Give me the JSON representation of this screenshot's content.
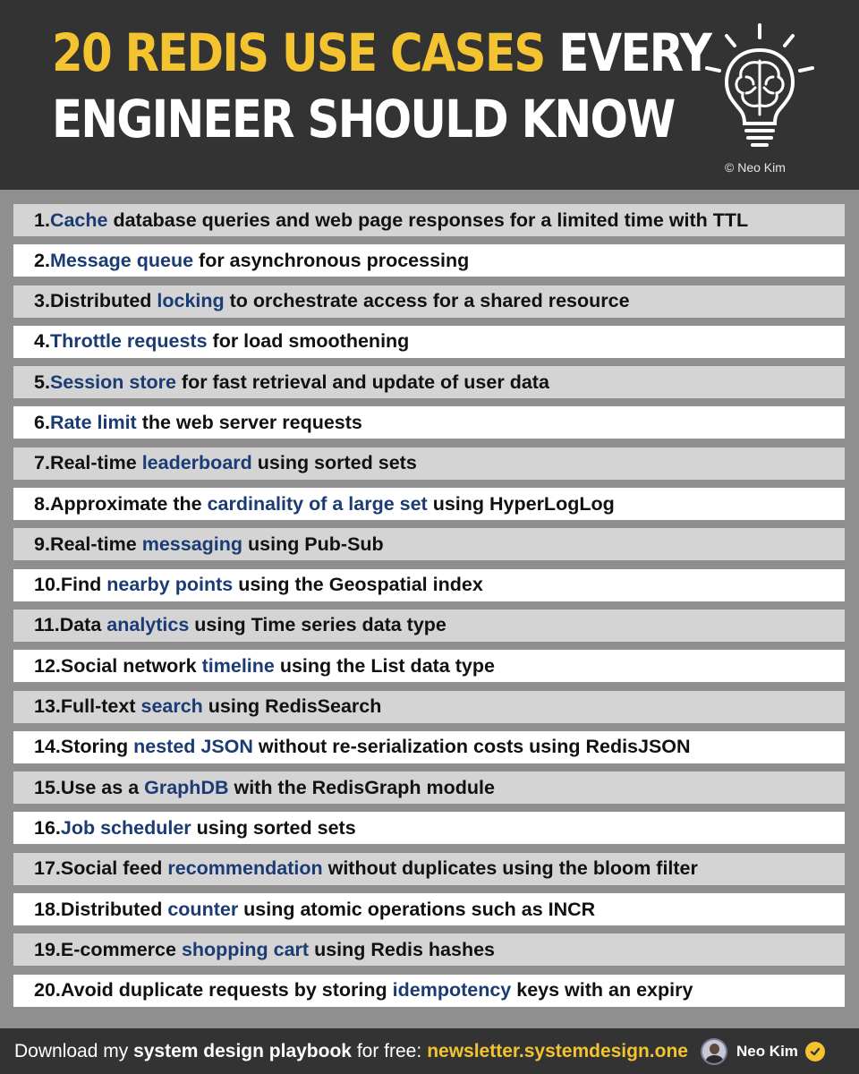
{
  "header": {
    "title_highlight": "20 REDIS USE CASES",
    "title_rest_line1": " EVERY",
    "title_line2": "ENGINEER SHOULD KNOW",
    "copyright": "© Neo Kim",
    "icon": "lightbulb-brain-icon"
  },
  "use_cases": [
    {
      "num": "1.",
      "pre": "",
      "kw": "Cache",
      "post": " database queries and web page responses for a limited time with TTL"
    },
    {
      "num": "2.",
      "pre": "",
      "kw": "Message queue",
      "post": " for asynchronous processing"
    },
    {
      "num": "3.",
      "pre": "Distributed ",
      "kw": "locking",
      "post": " to orchestrate access for a shared resource"
    },
    {
      "num": "4.",
      "pre": "",
      "kw": "Throttle requests",
      "post": " for load smoothening"
    },
    {
      "num": "5.",
      "pre": "",
      "kw": "Session store",
      "post": " for fast retrieval and update of user data"
    },
    {
      "num": "6.",
      "pre": "",
      "kw": "Rate limit",
      "post": " the web server requests"
    },
    {
      "num": "7.",
      "pre": "Real-time ",
      "kw": "leaderboard",
      "post": " using sorted sets"
    },
    {
      "num": "8.",
      "pre": "Approximate the ",
      "kw": "cardinality of a large set",
      "post": " using HyperLogLog"
    },
    {
      "num": "9.",
      "pre": "Real-time ",
      "kw": "messaging",
      "post": " using Pub-Sub"
    },
    {
      "num": "10.",
      "pre": "Find ",
      "kw": "nearby points",
      "post": " using the Geospatial index"
    },
    {
      "num": "11.",
      "pre": "Data ",
      "kw": "analytics",
      "post": " using Time series data type"
    },
    {
      "num": "12.",
      "pre": "Social network ",
      "kw": "timeline",
      "post": " using the List data type"
    },
    {
      "num": "13.",
      "pre": "Full-text ",
      "kw": "search",
      "post": " using RedisSearch"
    },
    {
      "num": "14.",
      "pre": "Storing ",
      "kw": "nested JSON",
      "post": " without re-serialization costs using RedisJSON"
    },
    {
      "num": "15.",
      "pre": "Use as a ",
      "kw": "GraphDB",
      "post": " with the RedisGraph module"
    },
    {
      "num": "16.",
      "pre": "",
      "kw": "Job scheduler",
      "post": " using sorted sets"
    },
    {
      "num": "17.",
      "pre": "Social feed ",
      "kw": "recommendation",
      "post": " without duplicates using the bloom filter"
    },
    {
      "num": "18.",
      "pre": "Distributed ",
      "kw": "counter",
      "post": " using atomic operations such as INCR"
    },
    {
      "num": "19.",
      "pre": "E-commerce ",
      "kw": "shopping cart",
      "post": " using Redis hashes"
    },
    {
      "num": "20.",
      "pre": "Avoid duplicate requests by storing ",
      "kw": "idempotency",
      "post": " keys with an expiry"
    }
  ],
  "footer": {
    "prefix": "Download my ",
    "bold": "system design playbook",
    "middle": " for free:",
    "link": "newsletter.systemdesign.one",
    "author": "Neo Kim",
    "avatar_icon": "avatar-icon",
    "badge_icon": "verified-check-icon"
  },
  "colors": {
    "header_bg": "#333333",
    "accent_yellow": "#f4c430",
    "keyword_blue": "#1a3b73",
    "row_gray": "#d4d4d4",
    "row_white": "#ffffff"
  }
}
